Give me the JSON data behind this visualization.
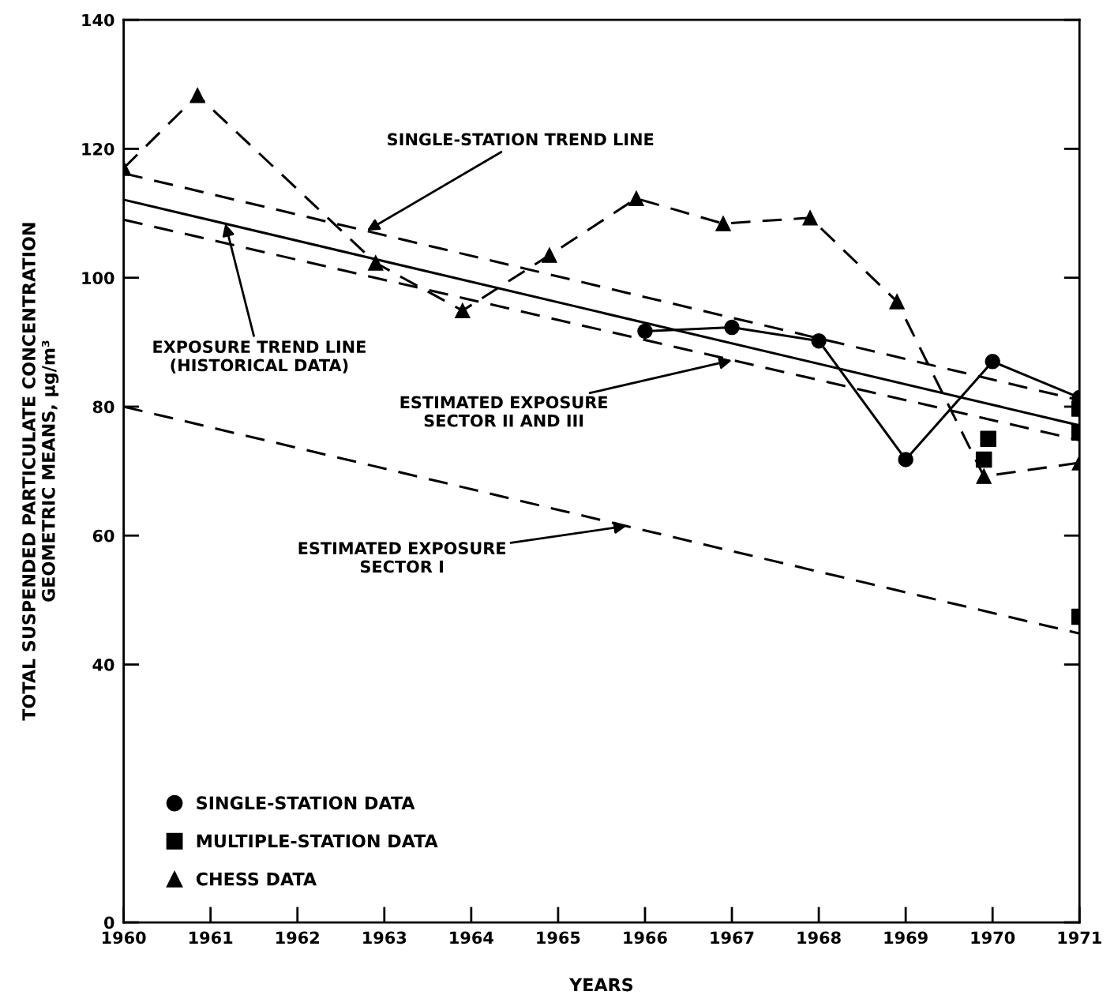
{
  "chart_data": {
    "type": "line",
    "xlabel": "YEARS",
    "ylabel": "TOTAL SUSPENDED PARTICULATE CONCENTRATION\nGEOMETRIC MEANS, μg/m³",
    "xlim": [
      1960,
      1971
    ],
    "xticks": [
      1960,
      1961,
      1962,
      1963,
      1964,
      1965,
      1966,
      1967,
      1968,
      1969,
      1970,
      1971
    ],
    "ylim": [
      0,
      140
    ],
    "yticks": [
      0,
      40,
      60,
      80,
      100,
      120,
      140
    ],
    "grid": false,
    "legend": "bottom left",
    "series": [
      {
        "name": "SINGLE-STATION DATA",
        "marker": "circle",
        "line_style": "solid",
        "color": "#000000",
        "x": [
          1966,
          1967,
          1968,
          1969,
          1970,
          1971
        ],
        "values": [
          91.7,
          92.3,
          90.2,
          71.8,
          87.0,
          81.4
        ]
      },
      {
        "name": "MULTIPLE-STATION DATA",
        "type": "scatter",
        "marker": "square",
        "color": "#000000",
        "x": [
          1969.9,
          1969.95,
          1971,
          1971,
          1971
        ],
        "values": [
          71.8,
          75.0,
          79.7,
          76.0,
          47.4
        ]
      },
      {
        "name": "CHESS DATA",
        "marker": "triangle",
        "line_style": "dashed",
        "color": "#000000",
        "x": [
          1960,
          1960.85,
          1962.9,
          1963.9,
          1964.9,
          1965.9,
          1966.9,
          1967.9,
          1968.9,
          1969.9,
          1971
        ],
        "values": [
          117,
          128.3,
          102.3,
          94.9,
          103.5,
          112.3,
          108.4,
          109.3,
          96.3,
          69.2,
          71.3
        ]
      },
      {
        "marker": "none",
        "line_style": "dashed",
        "color": "#000000",
        "x": [
          1960,
          1971
        ],
        "values": [
          116.2,
          81.0
        ]
      },
      {
        "marker": "none",
        "line_style": "solid",
        "color": "#000000",
        "x": [
          1960,
          1971
        ],
        "values": [
          112.1,
          77.1
        ]
      },
      {
        "marker": "none",
        "line_style": "dashed",
        "color": "#000000",
        "x": [
          1960,
          1971
        ],
        "values": [
          109.0,
          74.8
        ]
      },
      {
        "marker": "none",
        "line_style": "dashed",
        "color": "#000000",
        "x": [
          1960,
          1971
        ],
        "values": [
          80.0,
          44.8
        ]
      }
    ],
    "annotations": [
      {
        "text": "SINGLE-STATION TREND LINE",
        "x": 1962.8,
        "y": 107.3
      },
      {
        "text": "EXPOSURE TREND LINE\n(HISTORICAL DATA)",
        "x": 1961.17,
        "y": 108.4
      },
      {
        "text": "ESTIMATED EXPOSURE\nSECTOR II AND III",
        "x": 1967.0,
        "y": 87.2
      },
      {
        "text": "ESTIMATED EXPOSURE\nSECTOR I",
        "x": 1965.79,
        "y": 61.5
      }
    ]
  }
}
